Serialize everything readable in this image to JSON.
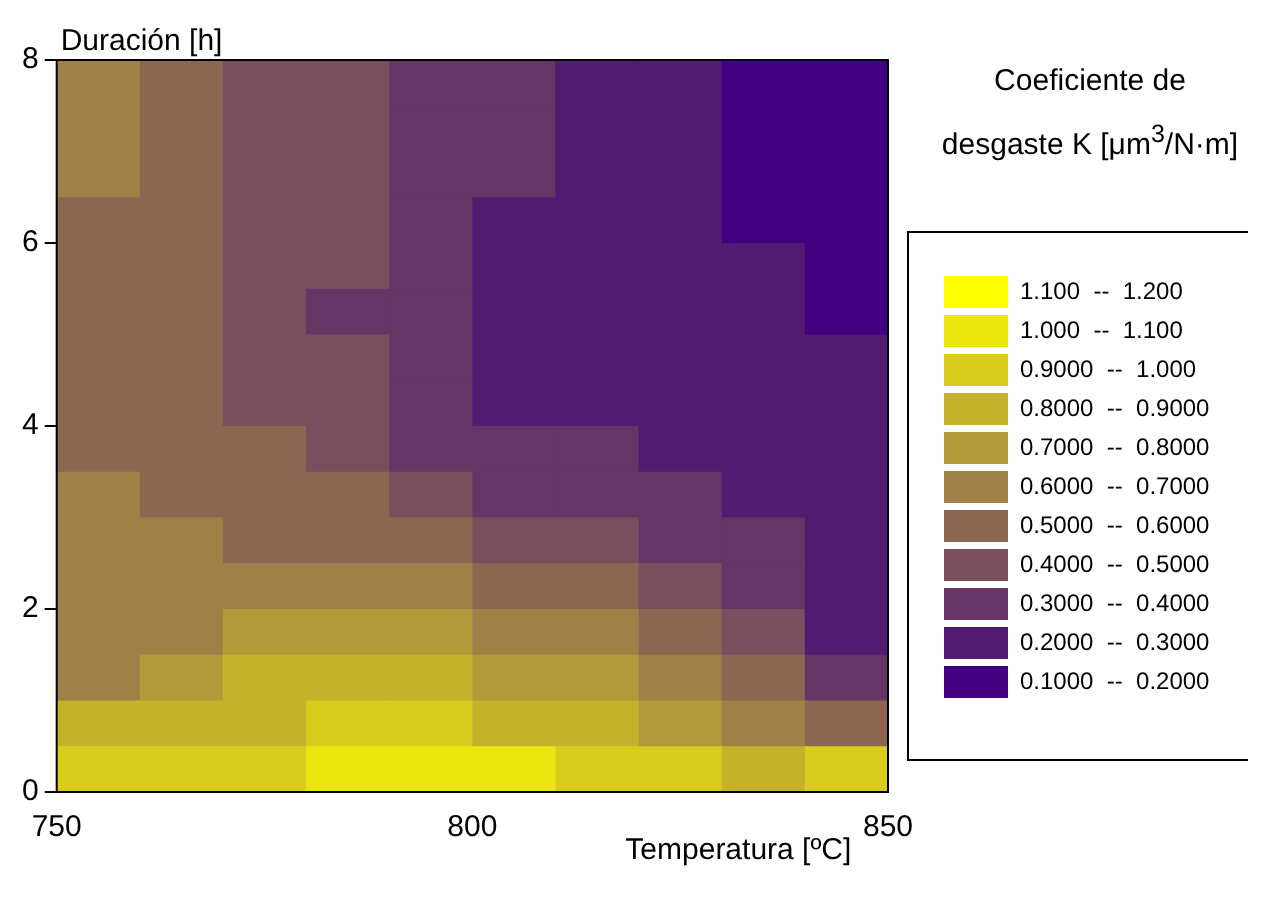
{
  "chart_data": {
    "type": "heatmap",
    "xlabel": "Temperatura [ºC]",
    "ylabel": "Duración [h]",
    "clabel": "Coeficiente de desgaste K [μm$^{3}$/N·m]",
    "x": [
      755,
      765,
      775,
      785,
      795,
      805,
      815,
      825,
      835,
      845
    ],
    "y": [
      7.75,
      7.25,
      6.75,
      6.25,
      5.75,
      5.25,
      4.75,
      4.25,
      3.75,
      3.25,
      2.75,
      2.25,
      1.75,
      1.25,
      0.75,
      0.25
    ],
    "xlim": [
      750,
      850
    ],
    "xticks": [
      750,
      800,
      850
    ],
    "ylim": [
      0,
      8
    ],
    "yticks": [
      0,
      2,
      4,
      6,
      8
    ],
    "clim": [
      0.1,
      1.2
    ],
    "cticks": [
      {
        "value": 1.15,
        "label": "1.100  --  1.200"
      },
      {
        "value": 1.05,
        "label": "1.000  --  1.100"
      },
      {
        "value": 0.95,
        "label": "0.9000  --  1.000"
      },
      {
        "value": 0.85,
        "label": "0.8000  --  0.9000"
      },
      {
        "value": 0.75,
        "label": "0.7000  --  0.8000"
      },
      {
        "value": 0.65,
        "label": "0.6000  --  0.7000"
      },
      {
        "value": 0.55,
        "label": "0.5000  --  0.6000"
      },
      {
        "value": 0.45,
        "label": "0.4000  --  0.5000"
      },
      {
        "value": 0.35,
        "label": "0.3000  --  0.4000"
      },
      {
        "value": 0.25,
        "label": "0.2000  --  0.3000"
      },
      {
        "value": 0.15,
        "label": "0.1000  --  0.2000"
      }
    ],
    "colors": [
      "#40007f",
      "#531a72",
      "#663566",
      "#7a4e5c",
      "#8c6650",
      "#a08046",
      "#b39a38",
      "#c6b22a",
      "#d9cc1c",
      "#ece60f",
      "#ffff00"
    ],
    "cells": [
      [
        0.65,
        0.55,
        0.45,
        0.45,
        0.35,
        0.35,
        0.25,
        0.25,
        0.15,
        0.15
      ],
      [
        0.65,
        0.55,
        0.45,
        0.45,
        0.35,
        0.35,
        0.25,
        0.25,
        0.15,
        0.15
      ],
      [
        0.65,
        0.55,
        0.45,
        0.45,
        0.35,
        0.35,
        0.25,
        0.25,
        0.15,
        0.15
      ],
      [
        0.55,
        0.55,
        0.45,
        0.45,
        0.35,
        0.25,
        0.25,
        0.25,
        0.15,
        0.15
      ],
      [
        0.55,
        0.55,
        0.45,
        0.45,
        0.35,
        0.25,
        0.25,
        0.25,
        0.25,
        0.15
      ],
      [
        0.55,
        0.55,
        0.45,
        0.35,
        0.35,
        0.25,
        0.25,
        0.25,
        0.25,
        0.15
      ],
      [
        0.55,
        0.55,
        0.45,
        0.45,
        0.35,
        0.25,
        0.25,
        0.25,
        0.25,
        0.25
      ],
      [
        0.55,
        0.55,
        0.45,
        0.45,
        0.35,
        0.25,
        0.25,
        0.25,
        0.25,
        0.25
      ],
      [
        0.55,
        0.55,
        0.55,
        0.45,
        0.35,
        0.35,
        0.35,
        0.25,
        0.25,
        0.25
      ],
      [
        0.65,
        0.55,
        0.55,
        0.55,
        0.45,
        0.35,
        0.35,
        0.35,
        0.25,
        0.25
      ],
      [
        0.65,
        0.65,
        0.55,
        0.55,
        0.55,
        0.45,
        0.45,
        0.35,
        0.35,
        0.25
      ],
      [
        0.65,
        0.65,
        0.65,
        0.65,
        0.65,
        0.55,
        0.55,
        0.45,
        0.35,
        0.25
      ],
      [
        0.65,
        0.65,
        0.75,
        0.75,
        0.75,
        0.65,
        0.65,
        0.55,
        0.45,
        0.25
      ],
      [
        0.65,
        0.75,
        0.85,
        0.85,
        0.85,
        0.75,
        0.75,
        0.65,
        0.55,
        0.35
      ],
      [
        0.85,
        0.85,
        0.85,
        0.95,
        0.95,
        0.85,
        0.85,
        0.75,
        0.65,
        0.55
      ],
      [
        0.95,
        0.95,
        0.95,
        1.05,
        1.05,
        1.05,
        0.95,
        0.95,
        0.85,
        0.95
      ]
    ]
  }
}
